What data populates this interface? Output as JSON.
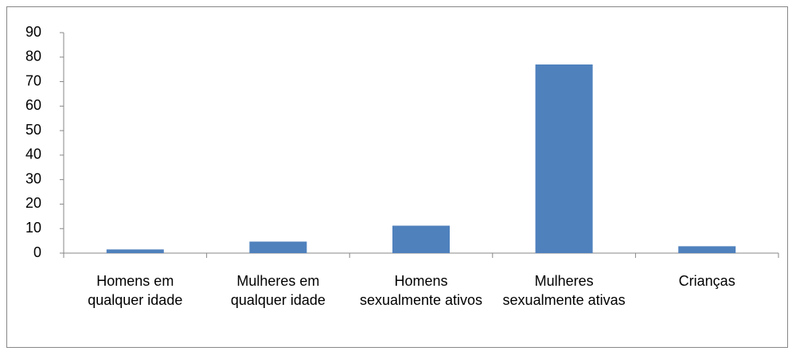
{
  "chart_data": {
    "type": "bar",
    "categories": [
      "Homens em qualquer idade",
      "Mulheres em qualquer idade",
      "Homens sexualmente ativos",
      "Mulheres sexualmente ativas",
      "Crianças"
    ],
    "values": [
      1.5,
      4.7,
      11.2,
      77,
      2.8
    ],
    "color": "#4f81bd",
    "ylim": [
      0,
      90
    ],
    "yticks": [
      0,
      10,
      20,
      30,
      40,
      50,
      60,
      70,
      80,
      90
    ],
    "grid": false
  }
}
